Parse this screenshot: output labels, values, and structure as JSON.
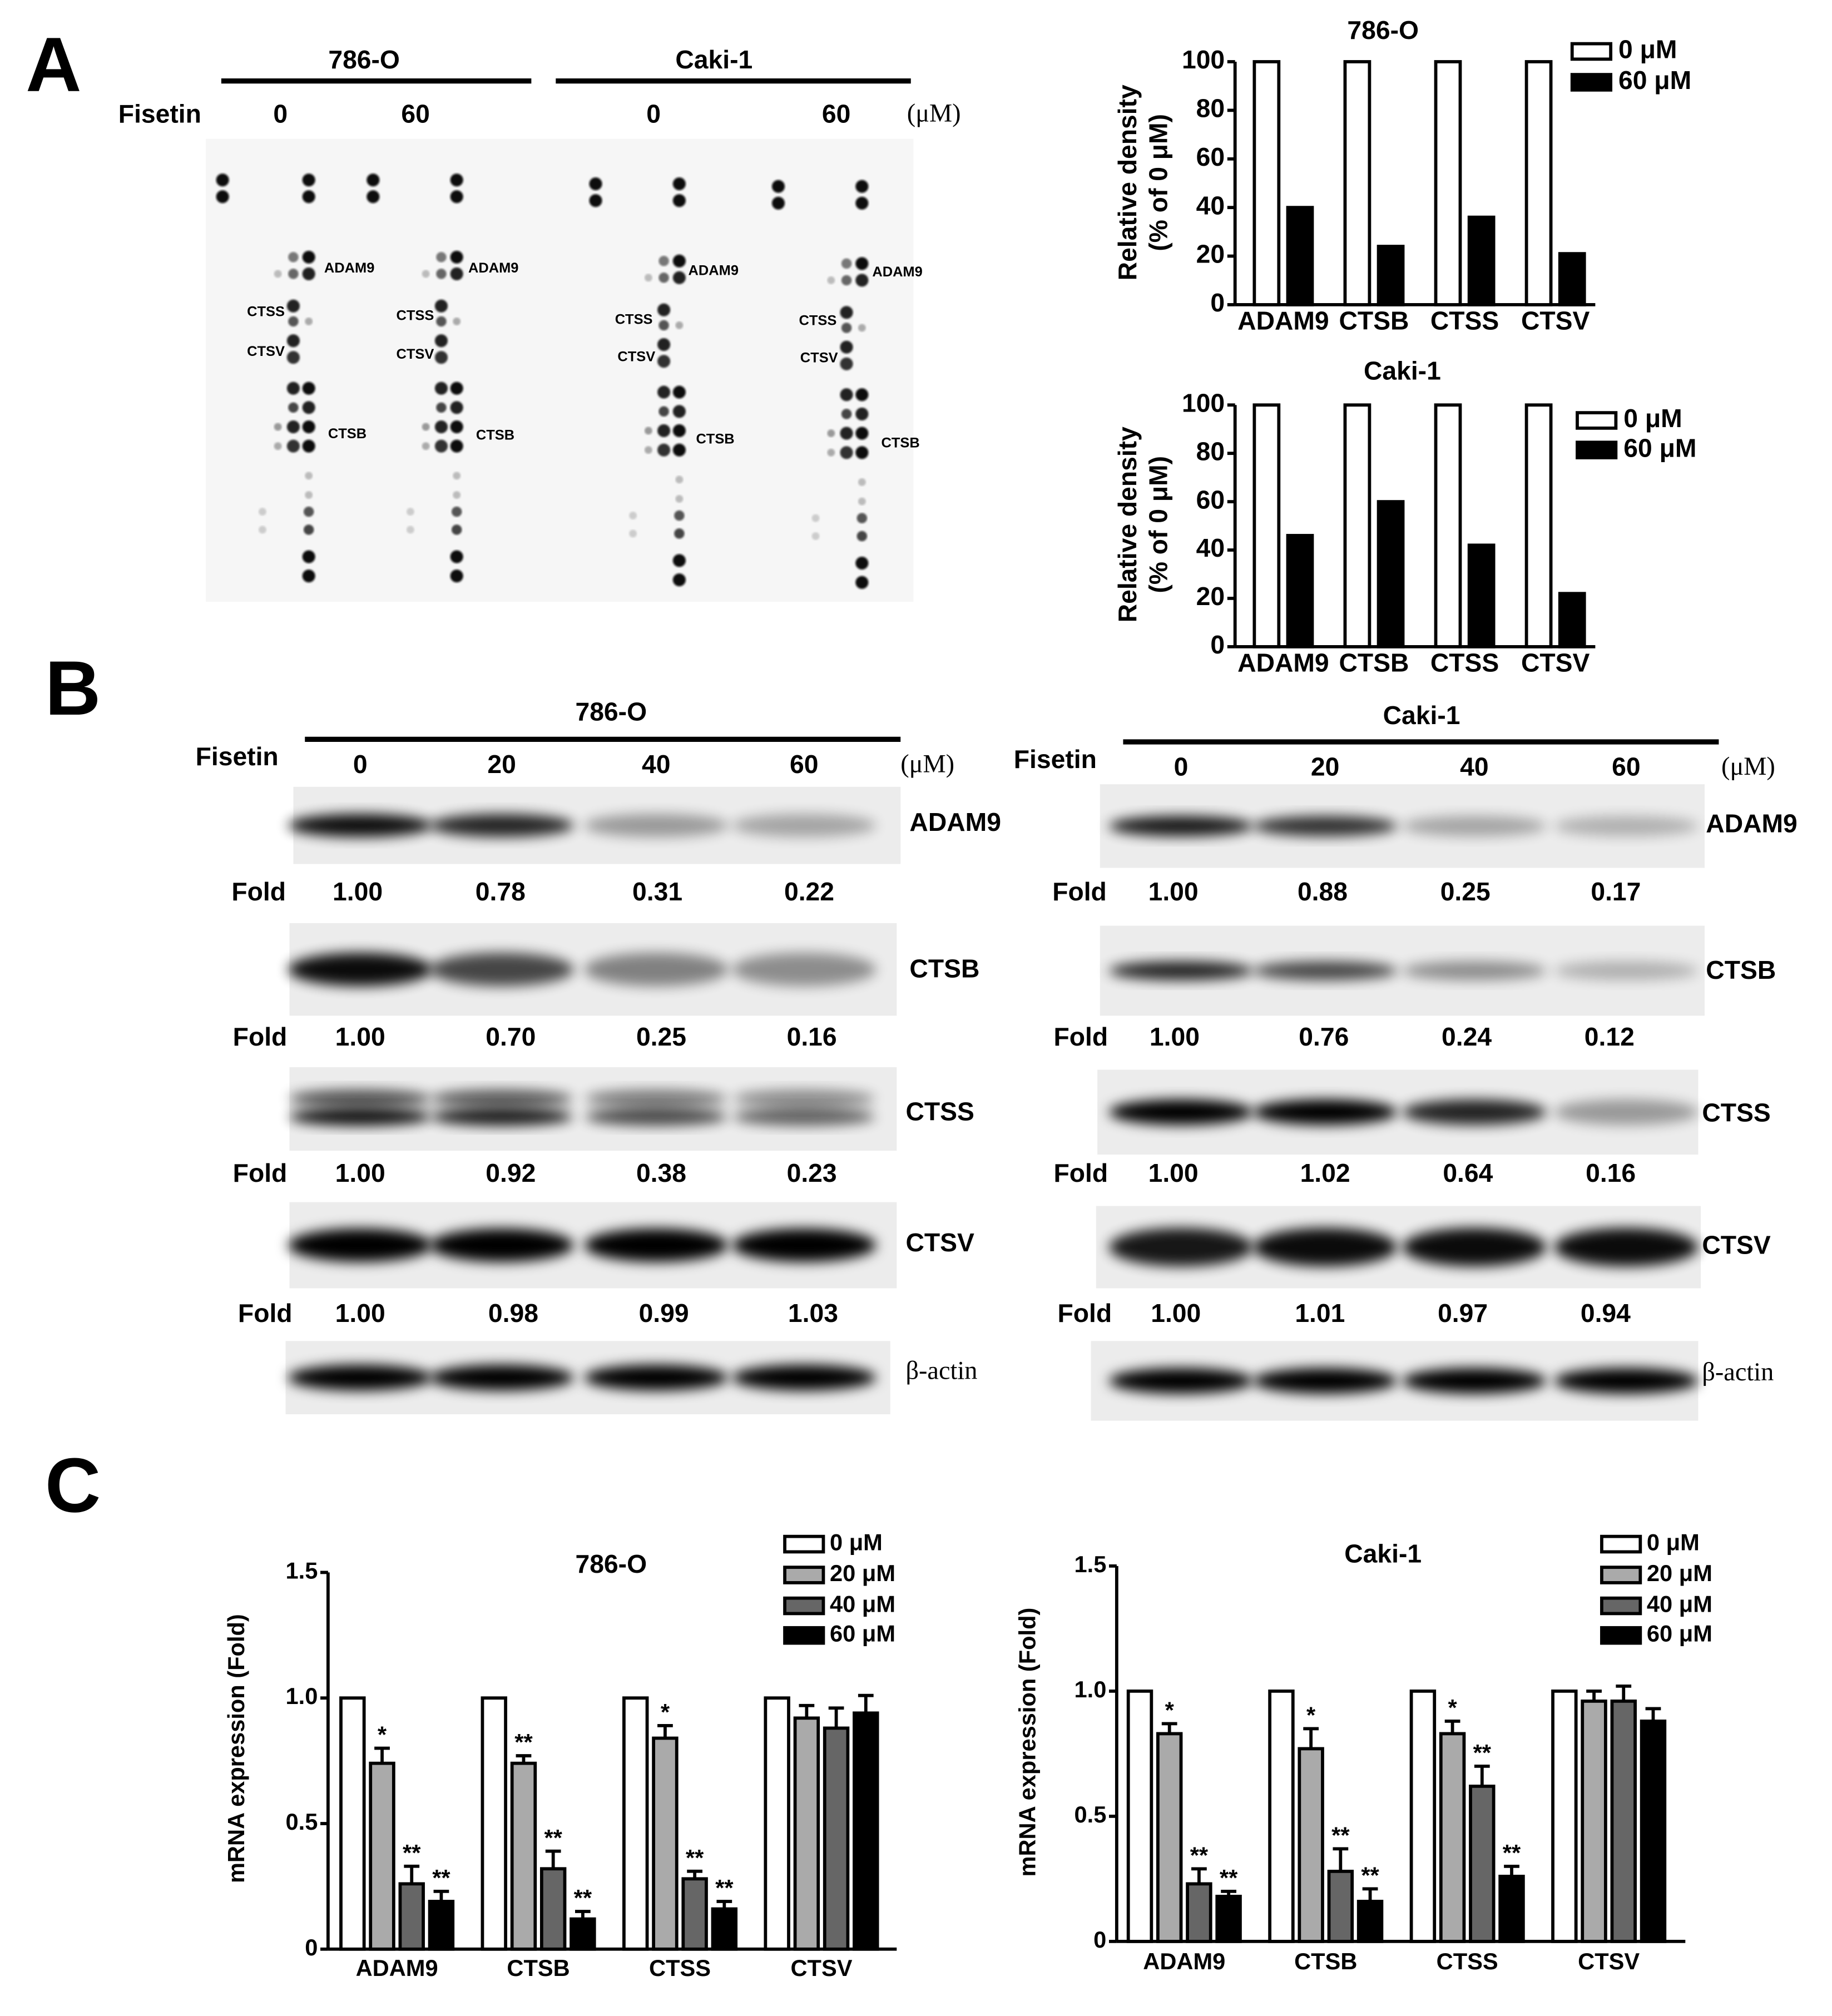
{
  "panel_labels": [
    "A",
    "B",
    "C"
  ],
  "array": {
    "cell_lines": [
      "786-O",
      "Caki-1"
    ],
    "treatment": "Fisetin",
    "doses": [
      "0",
      "60",
      "0",
      "60"
    ],
    "unit": "(μM)",
    "spot_labels": [
      [
        "ADAM9",
        "CTSS",
        "CTSV",
        "CTSB"
      ],
      [
        "ADAM9",
        "CTSS",
        "CTSV",
        "CTSB"
      ],
      [
        "ADAM9",
        "CTSS",
        "CTSV",
        "CTSB"
      ],
      [
        "ADAM9",
        "CTSS",
        "CTSV",
        "CTSB"
      ]
    ]
  },
  "western": [
    {
      "cell_line": "786-O",
      "treatment": "Fisetin",
      "doses": [
        "0",
        "20",
        "40",
        "60"
      ],
      "unit": "(μM)",
      "proteins": [
        {
          "name": "ADAM9",
          "fold_label": "Fold",
          "fold": [
            "1.00",
            "0.78",
            "0.31",
            "0.22"
          ]
        },
        {
          "name": "CTSB",
          "fold_label": "Fold",
          "fold": [
            "1.00",
            "0.70",
            "0.25",
            "0.16"
          ]
        },
        {
          "name": "CTSS",
          "fold_label": "Fold",
          "fold": [
            "1.00",
            "0.92",
            "0.38",
            "0.23"
          ]
        },
        {
          "name": "CTSV",
          "fold_label": "Fold",
          "fold": [
            "1.00",
            "0.98",
            "0.99",
            "1.03"
          ]
        },
        {
          "name": "β-actin"
        }
      ]
    },
    {
      "cell_line": "Caki-1",
      "treatment": "Fisetin",
      "doses": [
        "0",
        "20",
        "40",
        "60"
      ],
      "unit": "(μM)",
      "proteins": [
        {
          "name": "ADAM9",
          "fold_label": "Fold",
          "fold": [
            "1.00",
            "0.88",
            "0.25",
            "0.17"
          ]
        },
        {
          "name": "CTSB",
          "fold_label": "Fold",
          "fold": [
            "1.00",
            "0.76",
            "0.24",
            "0.12"
          ]
        },
        {
          "name": "CTSS",
          "fold_label": "Fold",
          "fold": [
            "1.00",
            "1.02",
            "0.64",
            "0.16"
          ]
        },
        {
          "name": "CTSV",
          "fold_label": "Fold",
          "fold": [
            "1.00",
            "1.01",
            "0.97",
            "0.94"
          ]
        },
        {
          "name": "β-actin"
        }
      ]
    }
  ],
  "chart_data": [
    {
      "type": "bar",
      "title": "786-O",
      "ylabel": [
        "Relative density",
        "(% of 0 μM)"
      ],
      "categories": [
        "ADAM9",
        "CTSB",
        "CTSS",
        "CTSV"
      ],
      "series": [
        {
          "name": "0 μM",
          "color": "#ffffff",
          "values": [
            100,
            100,
            100,
            100
          ]
        },
        {
          "name": "60 μM",
          "color": "#000000",
          "values": [
            40,
            24,
            36,
            21
          ]
        }
      ],
      "ylim": [
        0,
        100
      ],
      "yticks": [
        0,
        20,
        40,
        60,
        80,
        100
      ],
      "legend": "upper right",
      "edgecolor": "#000000"
    },
    {
      "type": "bar",
      "title": "Caki-1",
      "ylabel": [
        "Relative density",
        "(% of 0 μM)"
      ],
      "categories": [
        "ADAM9",
        "CTSB",
        "CTSS",
        "CTSV"
      ],
      "series": [
        {
          "name": "0 μM",
          "color": "#ffffff",
          "values": [
            100,
            100,
            100,
            100
          ]
        },
        {
          "name": "60 μM",
          "color": "#000000",
          "values": [
            46,
            60,
            42,
            22
          ]
        }
      ],
      "ylim": [
        0,
        100
      ],
      "yticks": [
        0,
        20,
        40,
        60,
        80,
        100
      ],
      "legend": "upper right",
      "edgecolor": "#000000"
    },
    {
      "type": "bar",
      "title": "786-O",
      "ylabel": [
        "mRNA expression (Fold)"
      ],
      "categories": [
        "ADAM9",
        "CTSB",
        "CTSS",
        "CTSV"
      ],
      "series": [
        {
          "name": "0 μM",
          "color": "#ffffff",
          "values": [
            1.0,
            1.0,
            1.0,
            1.0
          ]
        },
        {
          "name": "20 μM",
          "color": "#aaaaaa",
          "values": [
            0.74,
            0.74,
            0.84,
            0.92
          ],
          "errors": [
            0.06,
            0.03,
            0.05,
            0.05
          ],
          "labels": [
            "*",
            "**",
            "*",
            null
          ]
        },
        {
          "name": "40 μM",
          "color": "#666666",
          "values": [
            0.26,
            0.32,
            0.28,
            0.88
          ],
          "errors": [
            0.07,
            0.07,
            0.03,
            0.08
          ],
          "labels": [
            "**",
            "**",
            "**",
            null
          ]
        },
        {
          "name": "60 μM",
          "color": "#000000",
          "values": [
            0.19,
            0.12,
            0.16,
            0.94
          ],
          "errors": [
            0.04,
            0.03,
            0.03,
            0.07
          ],
          "labels": [
            "**",
            "**",
            "**",
            null
          ]
        }
      ],
      "ylim": [
        0,
        1.5
      ],
      "yticks": [
        0,
        0.5,
        {
          "value": 1,
          "label": "1.0"
        },
        1.5
      ],
      "legend": "upper right",
      "edgecolor": "#000000"
    },
    {
      "type": "bar",
      "title": "Caki-1",
      "ylabel": [
        "mRNA expression (Fold)"
      ],
      "categories": [
        "ADAM9",
        "CTSB",
        "CTSS",
        "CTSV"
      ],
      "series": [
        {
          "name": "0 μM",
          "color": "#ffffff",
          "values": [
            1.0,
            1.0,
            1.0,
            1.0
          ]
        },
        {
          "name": "20 μM",
          "color": "#aaaaaa",
          "values": [
            0.83,
            0.77,
            0.83,
            0.96
          ],
          "errors": [
            0.04,
            0.08,
            0.05,
            0.04
          ],
          "labels": [
            "*",
            "*",
            "*",
            null
          ]
        },
        {
          "name": "40 μM",
          "color": "#666666",
          "values": [
            0.23,
            0.28,
            0.62,
            0.96
          ],
          "errors": [
            0.06,
            0.09,
            0.08,
            0.06
          ],
          "labels": [
            "**",
            "**",
            "**",
            null
          ]
        },
        {
          "name": "60 μM",
          "color": "#000000",
          "values": [
            0.18,
            0.16,
            0.26,
            0.88
          ],
          "errors": [
            0.02,
            0.05,
            0.04,
            0.05
          ],
          "labels": [
            "**",
            "**",
            "**",
            null
          ]
        }
      ],
      "ylim": [
        0,
        1.5
      ],
      "yticks": [
        0,
        0.5,
        {
          "value": 1,
          "label": "1.0"
        },
        1.5
      ],
      "legend": "upper right",
      "edgecolor": "#000000"
    }
  ]
}
